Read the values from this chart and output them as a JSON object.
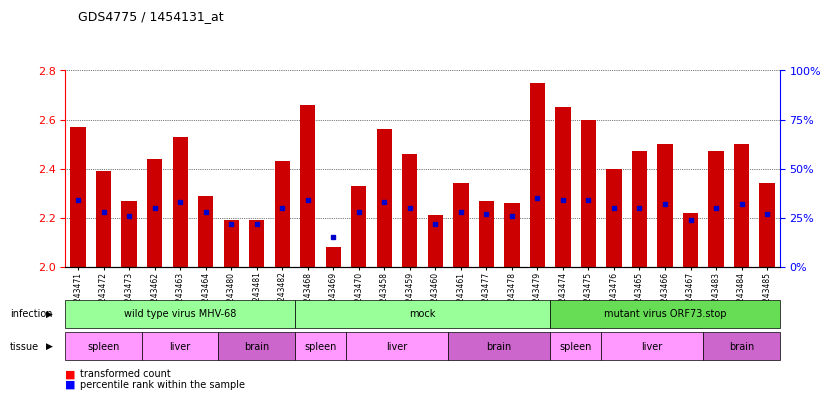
{
  "title": "GDS4775 / 1454131_at",
  "samples": [
    "GSM1243471",
    "GSM1243472",
    "GSM1243473",
    "GSM1243462",
    "GSM1243463",
    "GSM1243464",
    "GSM1243480",
    "GSM1243481",
    "GSM1243482",
    "GSM1243468",
    "GSM1243469",
    "GSM1243470",
    "GSM1243458",
    "GSM1243459",
    "GSM1243460",
    "GSM1243461",
    "GSM1243477",
    "GSM1243478",
    "GSM1243479",
    "GSM1243474",
    "GSM1243475",
    "GSM1243476",
    "GSM1243465",
    "GSM1243466",
    "GSM1243467",
    "GSM1243483",
    "GSM1243484",
    "GSM1243485"
  ],
  "red_values": [
    2.57,
    2.39,
    2.27,
    2.44,
    2.53,
    2.29,
    2.19,
    2.19,
    2.43,
    2.66,
    2.08,
    2.33,
    2.56,
    2.46,
    2.21,
    2.34,
    2.27,
    2.26,
    2.75,
    2.65,
    2.6,
    2.4,
    2.47,
    2.5,
    2.22,
    2.47,
    2.5,
    2.34
  ],
  "blue_values": [
    34,
    28,
    26,
    30,
    33,
    28,
    22,
    22,
    30,
    34,
    15,
    28,
    33,
    30,
    22,
    28,
    27,
    26,
    35,
    34,
    34,
    30,
    30,
    32,
    24,
    30,
    32,
    27
  ],
  "ylim": [
    2.0,
    2.8
  ],
  "y2lim": [
    0,
    100
  ],
  "yticks": [
    2.0,
    2.2,
    2.4,
    2.6,
    2.8
  ],
  "y2ticks": [
    0,
    25,
    50,
    75,
    100
  ],
  "bar_color": "#cc0000",
  "dot_color": "#0000cc",
  "infection_groups": [
    {
      "label": "wild type virus MHV-68",
      "start": 0,
      "end": 8,
      "color": "#99ff99"
    },
    {
      "label": "mock",
      "start": 9,
      "end": 18,
      "color": "#99ff99"
    },
    {
      "label": "mutant virus ORF73.stop",
      "start": 19,
      "end": 27,
      "color": "#66dd55"
    }
  ],
  "tissue_groups": [
    {
      "label": "spleen",
      "start": 0,
      "end": 2,
      "color": "#ff99ff"
    },
    {
      "label": "liver",
      "start": 3,
      "end": 5,
      "color": "#ff99ff"
    },
    {
      "label": "brain",
      "start": 6,
      "end": 8,
      "color": "#cc66cc"
    },
    {
      "label": "spleen",
      "start": 9,
      "end": 10,
      "color": "#ff99ff"
    },
    {
      "label": "liver",
      "start": 11,
      "end": 14,
      "color": "#ff99ff"
    },
    {
      "label": "brain",
      "start": 15,
      "end": 18,
      "color": "#cc66cc"
    },
    {
      "label": "spleen",
      "start": 19,
      "end": 20,
      "color": "#ff99ff"
    },
    {
      "label": "liver",
      "start": 21,
      "end": 24,
      "color": "#ff99ff"
    },
    {
      "label": "brain",
      "start": 25,
      "end": 27,
      "color": "#cc66cc"
    }
  ]
}
